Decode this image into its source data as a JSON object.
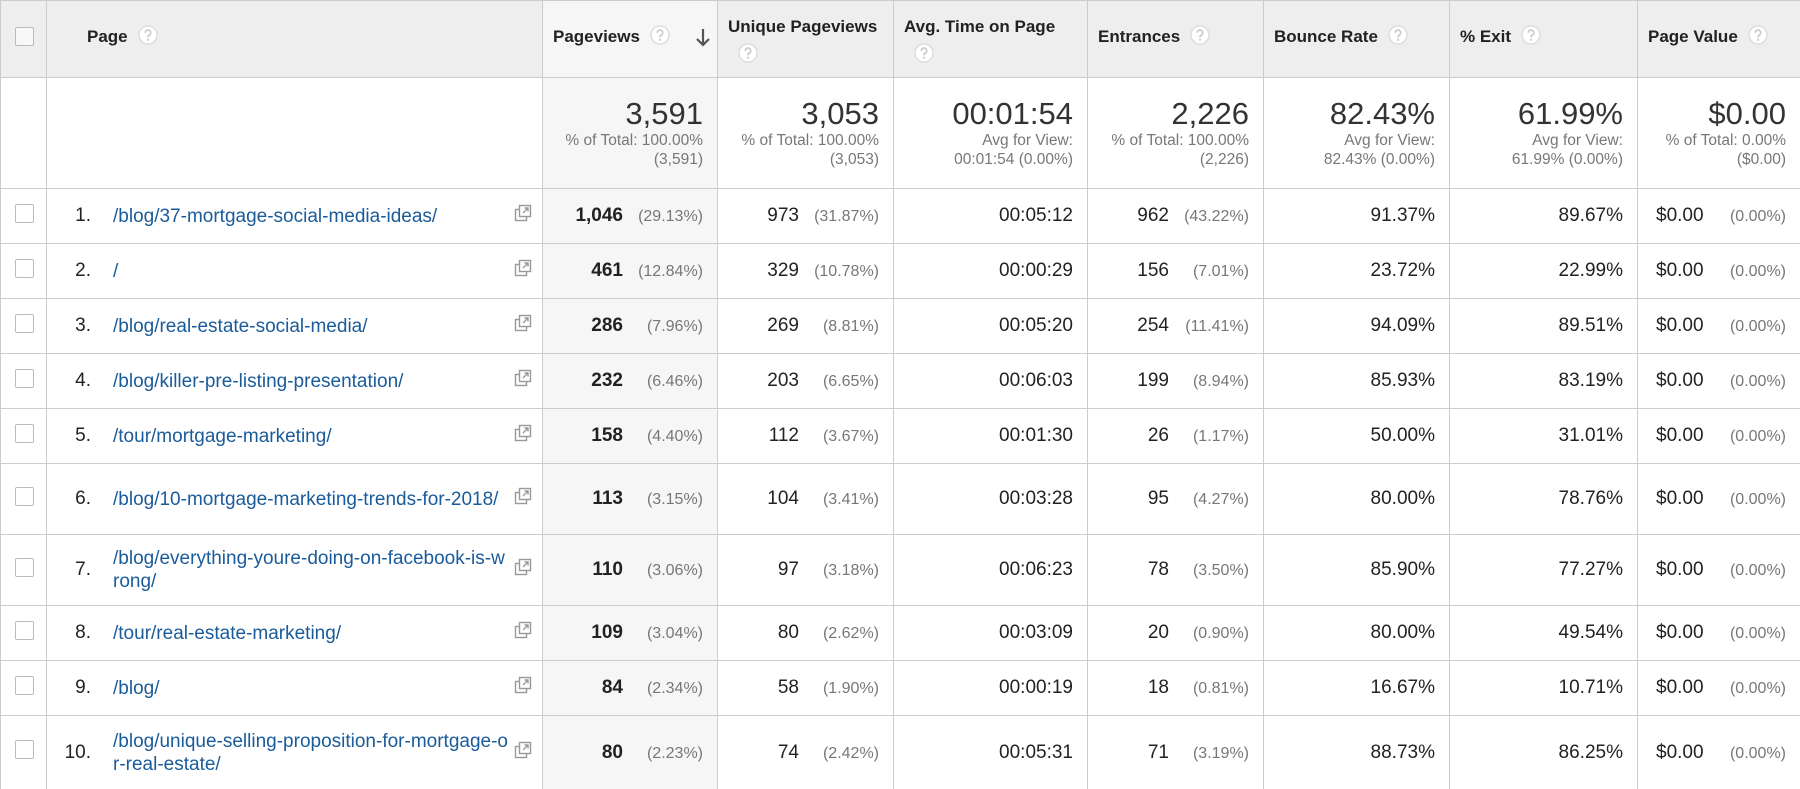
{
  "table": {
    "columns": [
      "Page",
      "Pageviews",
      "Unique Pageviews",
      "Avg. Time on Page",
      "Entrances",
      "Bounce Rate",
      "% Exit",
      "Page Value"
    ],
    "totals": [
      {
        "value": "3,591",
        "note": "% of Total: 100.00% (3,591)"
      },
      {
        "value": "3,053",
        "note": "% of Total: 100.00% (3,053)"
      },
      {
        "value": "00:01:54",
        "note": "Avg for View: 00:01:54 (0.00%)"
      },
      {
        "value": "2,226",
        "note": "% of Total: 100.00% (2,226)"
      },
      {
        "value": "82.43%",
        "note": "Avg for View: 82.43% (0.00%)"
      },
      {
        "value": "61.99%",
        "note": "Avg for View: 61.99% (0.00%)"
      },
      {
        "value": "$0.00",
        "note": "% of Total: 0.00% ($0.00)"
      }
    ],
    "rows": [
      {
        "rank": "1.",
        "page": "/blog/37-mortgage-social-media-ideas/",
        "cells": [
          [
            "1,046",
            "(29.13%)"
          ],
          [
            "973",
            "(31.87%)"
          ],
          [
            "00:05:12"
          ],
          [
            "962",
            "(43.22%)"
          ],
          [
            "91.37%"
          ],
          [
            "89.67%"
          ],
          [
            "$0.00",
            "(0.00%)"
          ]
        ]
      },
      {
        "rank": "2.",
        "page": "/",
        "cells": [
          [
            "461",
            "(12.84%)"
          ],
          [
            "329",
            "(10.78%)"
          ],
          [
            "00:00:29"
          ],
          [
            "156",
            "(7.01%)"
          ],
          [
            "23.72%"
          ],
          [
            "22.99%"
          ],
          [
            "$0.00",
            "(0.00%)"
          ]
        ]
      },
      {
        "rank": "3.",
        "page": "/blog/real-estate-social-media/",
        "cells": [
          [
            "286",
            "(7.96%)"
          ],
          [
            "269",
            "(8.81%)"
          ],
          [
            "00:05:20"
          ],
          [
            "254",
            "(11.41%)"
          ],
          [
            "94.09%"
          ],
          [
            "89.51%"
          ],
          [
            "$0.00",
            "(0.00%)"
          ]
        ]
      },
      {
        "rank": "4.",
        "page": "/blog/killer-pre-listing-presentation/",
        "cells": [
          [
            "232",
            "(6.46%)"
          ],
          [
            "203",
            "(6.65%)"
          ],
          [
            "00:06:03"
          ],
          [
            "199",
            "(8.94%)"
          ],
          [
            "85.93%"
          ],
          [
            "83.19%"
          ],
          [
            "$0.00",
            "(0.00%)"
          ]
        ]
      },
      {
        "rank": "5.",
        "page": "/tour/mortgage-marketing/",
        "cells": [
          [
            "158",
            "(4.40%)"
          ],
          [
            "112",
            "(3.67%)"
          ],
          [
            "00:01:30"
          ],
          [
            "26",
            "(1.17%)"
          ],
          [
            "50.00%"
          ],
          [
            "31.01%"
          ],
          [
            "$0.00",
            "(0.00%)"
          ]
        ]
      },
      {
        "rank": "6.",
        "page": "/blog/10-mortgage-marketing-trends-for-2018/",
        "cells": [
          [
            "113",
            "(3.15%)"
          ],
          [
            "104",
            "(3.41%)"
          ],
          [
            "00:03:28"
          ],
          [
            "95",
            "(4.27%)"
          ],
          [
            "80.00%"
          ],
          [
            "78.76%"
          ],
          [
            "$0.00",
            "(0.00%)"
          ]
        ]
      },
      {
        "rank": "7.",
        "page": "/blog/everything-youre-doing-on-facebook-is-wrong/",
        "cells": [
          [
            "110",
            "(3.06%)"
          ],
          [
            "97",
            "(3.18%)"
          ],
          [
            "00:06:23"
          ],
          [
            "78",
            "(3.50%)"
          ],
          [
            "85.90%"
          ],
          [
            "77.27%"
          ],
          [
            "$0.00",
            "(0.00%)"
          ]
        ]
      },
      {
        "rank": "8.",
        "page": "/tour/real-estate-marketing/",
        "cells": [
          [
            "109",
            "(3.04%)"
          ],
          [
            "80",
            "(2.62%)"
          ],
          [
            "00:03:09"
          ],
          [
            "20",
            "(0.90%)"
          ],
          [
            "80.00%"
          ],
          [
            "49.54%"
          ],
          [
            "$0.00",
            "(0.00%)"
          ]
        ]
      },
      {
        "rank": "9.",
        "page": "/blog/",
        "cells": [
          [
            "84",
            "(2.34%)"
          ],
          [
            "58",
            "(1.90%)"
          ],
          [
            "00:00:19"
          ],
          [
            "18",
            "(0.81%)"
          ],
          [
            "16.67%"
          ],
          [
            "10.71%"
          ],
          [
            "$0.00",
            "(0.00%)"
          ]
        ]
      },
      {
        "rank": "10.",
        "page": "/blog/unique-selling-proposition-for-mortgage-or-real-estate/",
        "cells": [
          [
            "80",
            "(2.23%)"
          ],
          [
            "74",
            "(2.42%)"
          ],
          [
            "00:05:31"
          ],
          [
            "71",
            "(3.19%)"
          ],
          [
            "88.73%"
          ],
          [
            "86.25%"
          ],
          [
            "$0.00",
            "(0.00%)"
          ]
        ]
      }
    ]
  }
}
